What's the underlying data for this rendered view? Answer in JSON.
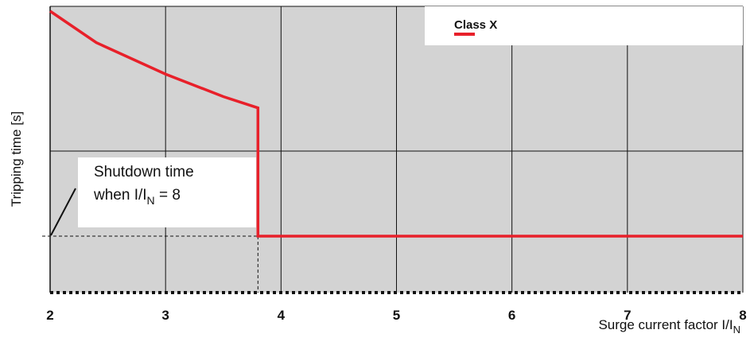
{
  "chart_data": {
    "type": "line",
    "title": "",
    "xlabel": "Surge current factor I/I",
    "xlabel_subscript": "N",
    "ylabel": "Tripping time [s]",
    "xlim": [
      2,
      8
    ],
    "x_ticks": [
      "2",
      "3",
      "4",
      "5",
      "6",
      "7",
      "8"
    ],
    "grid": true,
    "background_color": "#d3d3d3",
    "series_color": "#e8202a",
    "legend": {
      "label": "Class X",
      "placement": "top-right"
    },
    "series": [
      {
        "name": "Class X",
        "points": [
          {
            "x": 2.0,
            "y": 1.0
          },
          {
            "x": 2.4,
            "y": 0.86
          },
          {
            "x": 3.0,
            "y": 0.72
          },
          {
            "x": 3.5,
            "y": 0.62
          },
          {
            "x": 3.8,
            "y": 0.57
          },
          {
            "x": 3.8,
            "y": 0.0
          },
          {
            "x": 8.0,
            "y": 0.0
          }
        ]
      }
    ],
    "annotation": {
      "line1": "Shutdown time",
      "line2_prefix": "when I/I",
      "line2_subscript": "N",
      "line2_suffix": " = 8",
      "reference_x": 3.8,
      "reference_y": 0.0
    }
  }
}
